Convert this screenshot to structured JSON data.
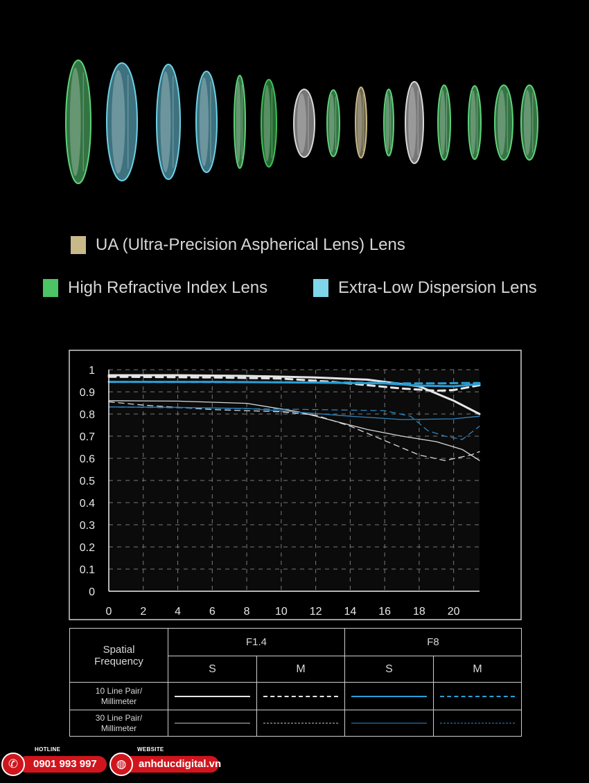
{
  "lens_elements": [
    {
      "type": "high-refractive",
      "color": "#5fd27a"
    },
    {
      "type": "extra-low-dispersion",
      "color": "#6fd0e6"
    },
    {
      "type": "extra-low-dispersion",
      "color": "#6fd0e6"
    },
    {
      "type": "extra-low-dispersion",
      "color": "#6fd0e6"
    },
    {
      "type": "high-refractive",
      "color": "#5fd27a"
    },
    {
      "type": "high-refractive",
      "color": "#3fbf5a"
    },
    {
      "type": "standard",
      "color": "#d9d9d9"
    },
    {
      "type": "high-refractive",
      "color": "#5fd27a"
    },
    {
      "type": "ultra-precision-aspherical",
      "color": "#c9b98a"
    },
    {
      "type": "high-refractive",
      "color": "#5fd27a"
    },
    {
      "type": "standard",
      "color": "#d9d9d9"
    },
    {
      "type": "high-refractive",
      "color": "#5fd27a"
    },
    {
      "type": "high-refractive",
      "color": "#5fd27a"
    },
    {
      "type": "high-refractive",
      "color": "#5fd27a"
    },
    {
      "type": "high-refractive",
      "color": "#5fd27a"
    }
  ],
  "legend": {
    "ua": {
      "label": "UA (Ultra-Precision Aspherical Lens) Lens",
      "color": "#c9b98a"
    },
    "hri": {
      "label": "High Refractive Index Lens",
      "color": "#4cc466"
    },
    "ed": {
      "label": "Extra-Low Dispersion Lens",
      "color": "#7fd6ea"
    }
  },
  "chart_data": {
    "type": "line",
    "xlim": [
      0,
      21.5
    ],
    "ylim": [
      0,
      1
    ],
    "x_ticks": [
      "0",
      "2",
      "4",
      "6",
      "8",
      "10",
      "12",
      "14",
      "16",
      "18",
      "20"
    ],
    "y_ticks": [
      "0",
      "0.1",
      "0.2",
      "0.3",
      "0.4",
      "0.5",
      "0.6",
      "0.7",
      "0.8",
      "0.9",
      "1"
    ],
    "grid": true,
    "series": [
      {
        "aperture": "F1.4",
        "direction": "S",
        "frequency": "10 Line Pair/ Millimeter",
        "color": "#e6e6e6",
        "style": "solid",
        "weight": "thick",
        "points": [
          [
            0,
            0.975
          ],
          [
            4,
            0.975
          ],
          [
            8,
            0.972
          ],
          [
            12,
            0.965
          ],
          [
            15,
            0.955
          ],
          [
            18,
            0.925
          ],
          [
            20,
            0.86
          ],
          [
            21.5,
            0.8
          ]
        ]
      },
      {
        "aperture": "F1.4",
        "direction": "M",
        "frequency": "10 Line Pair/ Millimeter",
        "color": "#e6e6e6",
        "style": "dashed",
        "weight": "thick",
        "points": [
          [
            0,
            0.968
          ],
          [
            6,
            0.965
          ],
          [
            10,
            0.96
          ],
          [
            13,
            0.945
          ],
          [
            15,
            0.93
          ],
          [
            17,
            0.915
          ],
          [
            19,
            0.905
          ],
          [
            20,
            0.908
          ],
          [
            21.5,
            0.93
          ]
        ]
      },
      {
        "aperture": "F8",
        "direction": "S",
        "frequency": "10 Line Pair/ Millimeter",
        "color": "#2a9fd6",
        "style": "solid",
        "weight": "thick",
        "points": [
          [
            0,
            0.945
          ],
          [
            6,
            0.945
          ],
          [
            12,
            0.942
          ],
          [
            16,
            0.938
          ],
          [
            18,
            0.928
          ],
          [
            20,
            0.925
          ],
          [
            21.5,
            0.935
          ]
        ]
      },
      {
        "aperture": "F8",
        "direction": "M",
        "frequency": "10 Line Pair/ Millimeter",
        "color": "#2a9fd6",
        "style": "dashed",
        "weight": "thick",
        "points": [
          [
            0,
            0.945
          ],
          [
            8,
            0.944
          ],
          [
            14,
            0.942
          ],
          [
            16,
            0.94
          ],
          [
            17,
            0.938
          ],
          [
            19,
            0.938
          ],
          [
            20.5,
            0.94
          ],
          [
            21.5,
            0.94
          ]
        ]
      },
      {
        "aperture": "F1.4",
        "direction": "S",
        "frequency": "30 Line Pair/ Millimeter",
        "color": "#d8d8d8",
        "style": "solid",
        "weight": "thin",
        "points": [
          [
            0,
            0.86
          ],
          [
            4,
            0.858
          ],
          [
            8,
            0.848
          ],
          [
            11,
            0.81
          ],
          [
            13,
            0.77
          ],
          [
            15,
            0.73
          ],
          [
            17,
            0.7
          ],
          [
            19,
            0.675
          ],
          [
            20.5,
            0.64
          ],
          [
            21.5,
            0.59
          ]
        ]
      },
      {
        "aperture": "F1.4",
        "direction": "M",
        "frequency": "30 Line Pair/ Millimeter",
        "color": "#d8d8d8",
        "style": "dashed",
        "weight": "thin",
        "points": [
          [
            0,
            0.855
          ],
          [
            2,
            0.84
          ],
          [
            6,
            0.82
          ],
          [
            10,
            0.81
          ],
          [
            12,
            0.795
          ],
          [
            14,
            0.745
          ],
          [
            16,
            0.68
          ],
          [
            18,
            0.615
          ],
          [
            19.5,
            0.59
          ],
          [
            21,
            0.615
          ],
          [
            21.5,
            0.63
          ]
        ]
      },
      {
        "aperture": "F8",
        "direction": "S",
        "frequency": "30 Line Pair/ Millimeter",
        "color": "#2e86c1",
        "style": "solid",
        "weight": "thin",
        "points": [
          [
            0,
            0.832
          ],
          [
            4,
            0.83
          ],
          [
            8,
            0.825
          ],
          [
            11,
            0.808
          ],
          [
            14,
            0.79
          ],
          [
            17,
            0.775
          ],
          [
            20,
            0.778
          ],
          [
            21.5,
            0.79
          ]
        ]
      },
      {
        "aperture": "F8",
        "direction": "M",
        "frequency": "30 Line Pair/ Millimeter",
        "color": "#2e86c1",
        "style": "dashed",
        "weight": "thin",
        "points": [
          [
            0,
            0.832
          ],
          [
            6,
            0.826
          ],
          [
            12,
            0.82
          ],
          [
            16,
            0.815
          ],
          [
            17.5,
            0.79
          ],
          [
            18.5,
            0.725
          ],
          [
            19.5,
            0.7
          ],
          [
            20.5,
            0.685
          ],
          [
            21.5,
            0.745
          ]
        ]
      }
    ]
  },
  "table": {
    "header_label": "Spatial Frequency",
    "apertures": [
      "F1.4",
      "F8"
    ],
    "directions": [
      "S",
      "M",
      "S",
      "M"
    ],
    "rows": [
      {
        "label": "10 Line Pair/ Millimeter"
      },
      {
        "label": "30 Line Pair/ Millimeter"
      }
    ]
  },
  "footer": {
    "hotline_label": "HOTLINE",
    "hotline_number": "0901 993 997",
    "website_label": "WEBSITE",
    "website_url": "anhducdigital.vn",
    "badge_color": "#d0151d"
  }
}
